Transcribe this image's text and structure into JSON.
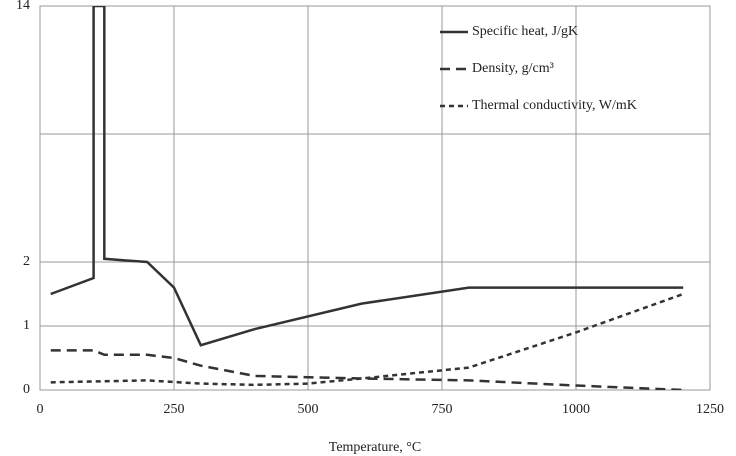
{
  "chart_data": {
    "type": "line",
    "x_label": "Temperature, °C",
    "xlim": [
      0,
      1250
    ],
    "xticks": [
      0,
      250,
      500,
      750,
      1000,
      1250
    ],
    "ylim": [
      0,
      14
    ],
    "yticks": [
      0,
      1,
      2,
      {
        "value": 8,
        "label": null
      },
      14
    ],
    "grid": true,
    "legend": "top-right",
    "series": [
      {
        "name": "Specific heat, J/gK",
        "color": "#333333",
        "dash": "solid",
        "x": [
          20,
          100,
          100,
          120,
          120,
          200,
          250,
          300,
          400,
          600,
          800,
          1200
        ],
        "values": [
          1.5,
          1.75,
          14,
          14,
          2.15,
          2.0,
          1.6,
          0.7,
          0.95,
          1.35,
          1.6,
          1.6
        ]
      },
      {
        "name": "Density, g/cm³",
        "color": "#333333",
        "dash": "long",
        "x": [
          20,
          100,
          120,
          200,
          250,
          300,
          400,
          500,
          600,
          800,
          1000,
          1200
        ],
        "values": [
          0.62,
          0.62,
          0.55,
          0.55,
          0.5,
          0.38,
          0.22,
          0.2,
          0.18,
          0.15,
          0.07,
          0
        ]
      },
      {
        "name": "Thermal conductivity, W/mK",
        "color": "#333333",
        "dash": "short",
        "x": [
          20,
          200,
          300,
          400,
          500,
          600,
          800,
          1000,
          1200
        ],
        "values": [
          0.12,
          0.15,
          0.1,
          0.08,
          0.1,
          0.18,
          0.35,
          0.9,
          1.5
        ]
      }
    ]
  }
}
